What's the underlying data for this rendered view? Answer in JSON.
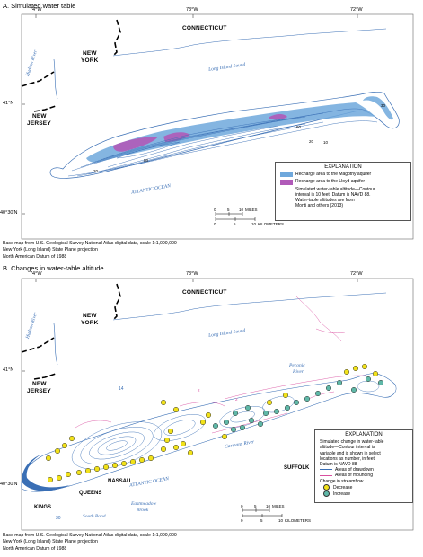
{
  "panel_a": {
    "title": "A.   Simulated water table",
    "lon_labels": [
      "74°W",
      "73°W",
      "72°W"
    ],
    "lat_labels": [
      "41°N",
      "40°30'N"
    ],
    "states": {
      "connecticut": "CONNECTICUT",
      "new_york_1": "NEW",
      "new_york_2": "YORK",
      "new_jersey_1": "NEW",
      "new_jersey_2": "JERSEY"
    },
    "water": {
      "hudson": "Hudson River",
      "sound": "Long Island Sound",
      "ocean": "ATLANTIC OCEAN"
    },
    "contour_labels": [
      "30",
      "20",
      "10",
      "80",
      "60",
      "20"
    ],
    "legend": {
      "heading": "EXPLANATION",
      "magothy": "Recharge area to the Magothy aquifer",
      "lloyd": "Recharge area to the Lloyd aquifer",
      "contour_line1": "Simulated water-table altitude—Contour",
      "contour_line2": "interval is 10 feet. Datum is NAVD 88.",
      "contour_line3": "Water-table altitudes are from",
      "contour_line4": "Monti and others (2013)",
      "magothy_color": "#6fa8dc",
      "lloyd_color": "#b05ab8"
    },
    "scale": {
      "ticks": [
        "0",
        "5",
        "10"
      ],
      "miles": "MILES",
      "km": "KILOMETERS",
      "km_ticks": [
        "0",
        "5",
        "10"
      ]
    },
    "basemap_1": "Base map from U.S. Geological Survey National Atlas digital data, scale 1:1,000,000",
    "basemap_2": "New York (Long Island) State Plane projection",
    "basemap_3": "North American Datum of 1988"
  },
  "panel_b": {
    "title": "B.   Changes in water-table altitude",
    "lon_labels": [
      "74°W",
      "73°W",
      "72°W"
    ],
    "lat_labels": [
      "41°N",
      "40°30'N"
    ],
    "states": {
      "connecticut": "CONNECTICUT",
      "new_york_1": "NEW",
      "new_york_2": "YORK",
      "new_jersey_1": "NEW",
      "new_jersey_2": "JERSEY"
    },
    "water": {
      "hudson": "Hudson River",
      "sound": "Long Island Sound",
      "peconic_1": "Peconic",
      "peconic_2": "River",
      "carmans": "Carmans River",
      "ocean": "ATLANTIC OCEAN",
      "south_pond": "South Pond",
      "east_1": "Eastmeadow",
      "east_2": "Brook"
    },
    "counties": {
      "kings": "KINGS",
      "queens": "QUEENS",
      "nassau": "NASSAU",
      "suffolk": "SUFFOLK"
    },
    "contour_labels": [
      "14",
      "2",
      "2",
      "30"
    ],
    "legend": {
      "heading": "EXPLANATION",
      "line1": "Simulated change in water-table",
      "line2": "altitude—Contour interval is",
      "line3": "variable and is shown in select",
      "line4": "locations as number, in feet.",
      "line5": "Datum is NAVD 88",
      "drawdown": "Areas of drawdown",
      "mounding": "Areas of mounding",
      "streamflow": "Change in streamflow",
      "decrease": "Decrease",
      "increase": "Increase",
      "drawdown_color": "#3a6fb5",
      "mounding_color": "#d94fa0",
      "decrease_color": "#f2e21a",
      "increase_color": "#5fb8a8"
    },
    "scale": {
      "ticks": [
        "0",
        "5",
        "10"
      ],
      "miles": "MILES",
      "km": "KILOMETERS",
      "km_ticks": [
        "0",
        "5",
        "10"
      ]
    },
    "basemap_1": "Base map from U.S. Geological Survey National Atlas digital data, scale 1:1,000,000",
    "basemap_2": "New York (Long Island) State Plane projection",
    "basemap_3": "North American Datum of 1988"
  }
}
